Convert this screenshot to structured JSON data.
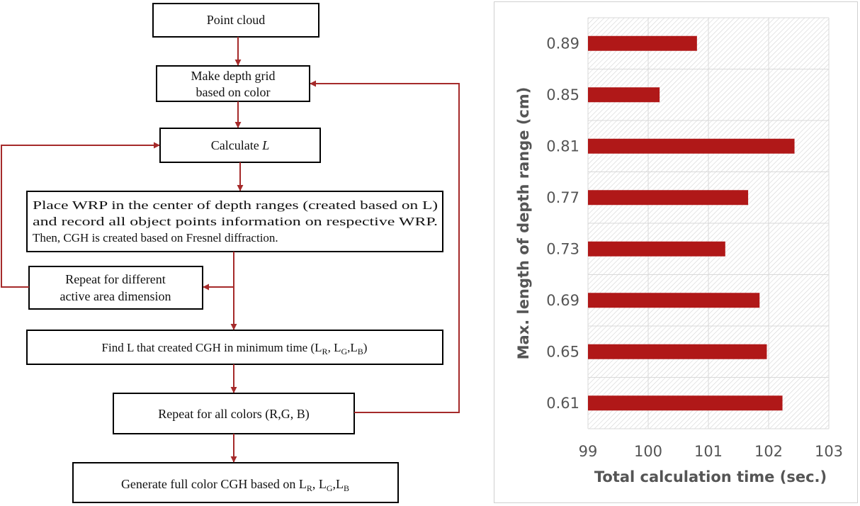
{
  "flowchart": {
    "point_cloud": "Point cloud",
    "depth_grid_1": "Make depth grid",
    "depth_grid_2": "based on color",
    "calculate": "Calculate ",
    "calculate_var": "L",
    "wrp_1": "Place WRP in the center of depth ranges (created based on L)",
    "wrp_2": "and record all object points information on respective WRP.",
    "wrp_3": "Then, CGH is created based on Fresnel diffraction.",
    "repeat_area_1": "Repeat for different",
    "repeat_area_2": "active area dimension",
    "find_l": "Find L that created CGH in minimum time (",
    "find_l_end": ")",
    "repeat_colors": "Repeat for all colors (R,G, B)",
    "generate": "Generate full color CGH based on ",
    "sym_L": "L",
    "sub_R": "R",
    "sub_G": "G",
    "sub_B": "B",
    "comma": ", ",
    "comma_tight": ","
  },
  "colors": {
    "bar": "#b01818",
    "arrow": "#a52a2a"
  },
  "chart_data": {
    "type": "bar",
    "orientation": "horizontal",
    "categories": [
      "0.61",
      "0.65",
      "0.69",
      "0.73",
      "0.77",
      "0.81",
      "0.85",
      "0.89"
    ],
    "values": [
      102.23,
      101.97,
      101.85,
      101.28,
      101.66,
      102.43,
      100.19,
      100.81
    ],
    "xlabel": "Total calculation time (sec.)",
    "ylabel": "Max. length of depth range (cm)",
    "xlim": [
      99,
      103
    ],
    "xticks": [
      "99",
      "100",
      "101",
      "102",
      "103"
    ],
    "grid": true,
    "legend": "none"
  }
}
